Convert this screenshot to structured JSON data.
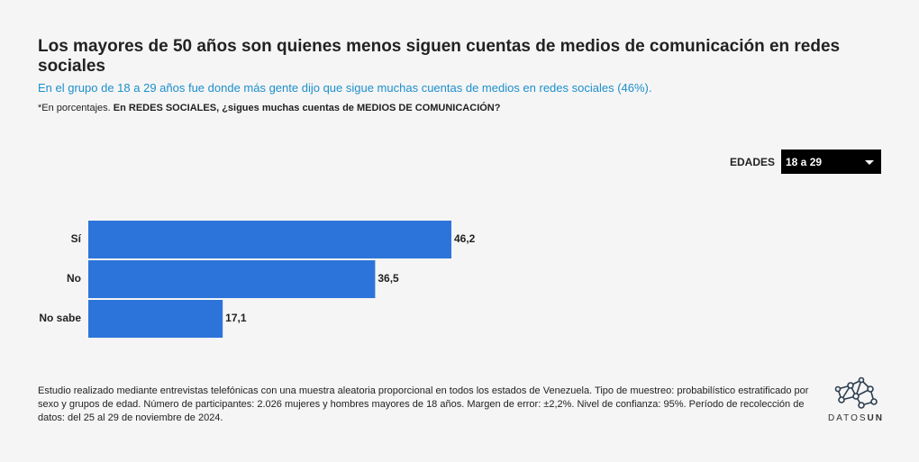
{
  "chart_data": {
    "type": "bar",
    "orientation": "horizontal",
    "title": "Los mayores de 50 años son quienes menos siguen cuentas de medios de comunicación en redes sociales",
    "subtitle": "En el grupo de 18 a 29 años fue donde más gente dijo que sigue muchas cuentas de medios en redes sociales (46%).",
    "note": "*En porcentajes.",
    "question": "En REDES SOCIALES, ¿sigues muchas cuentas de MEDIOS DE COMUNICACIÓN?",
    "categories": [
      "Sí",
      "No",
      "No sabe"
    ],
    "values": [
      46.2,
      36.5,
      17.1
    ],
    "value_labels": [
      "46,2",
      "36,5",
      "17,1"
    ],
    "color": "#2d74da",
    "filter": {
      "label": "EDADES",
      "selected": "18 a 29"
    },
    "source": "Estudio realizado mediante entrevistas telefónicas con una muestra aleatoria proporcional en todos los estados de Venezuela. Tipo de muestreo: probabilístico estratificado por sexo y grupos de edad. Número de participantes: 2.026 mujeres y hombres mayores de 18 años. Margen de error: ±2,2%. Nivel de confianza: 95%. Período de recolección de datos: del 25 al 29 de noviembre de 2024."
  },
  "logo": {
    "part1": "DATOS",
    "part2": "UN"
  }
}
